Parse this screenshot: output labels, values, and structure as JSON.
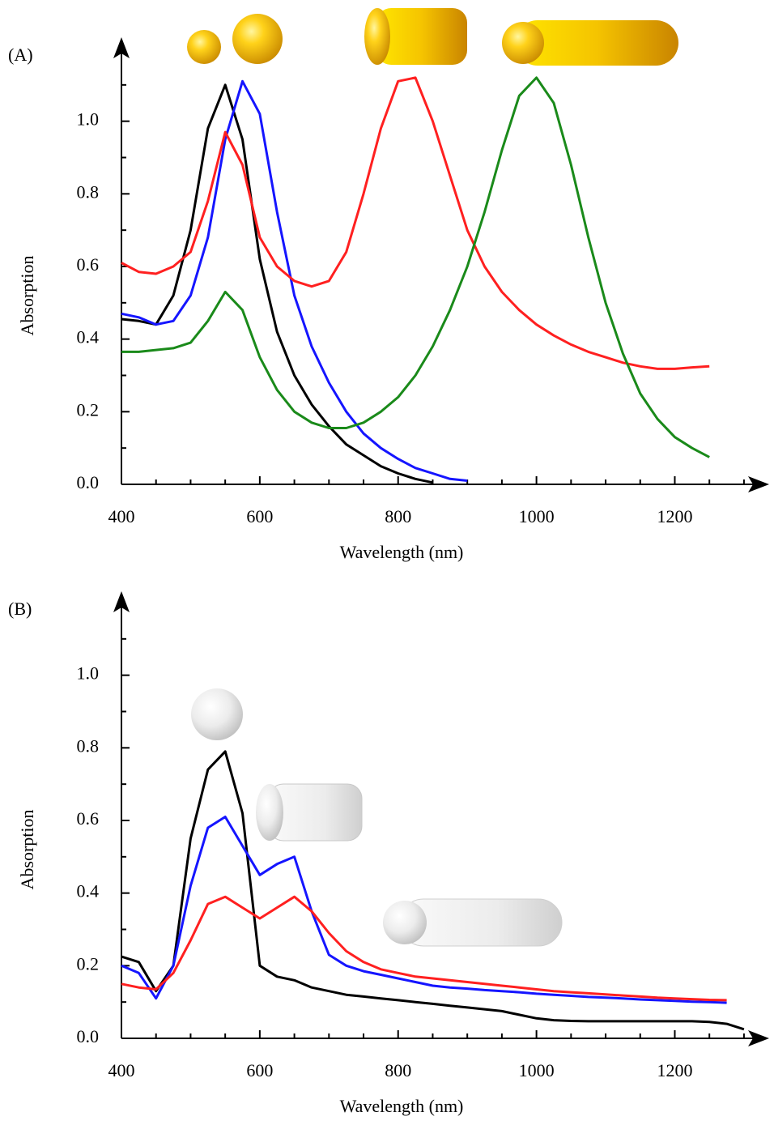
{
  "chart_data": [
    {
      "type": "line",
      "panel_label": "(A)",
      "xlabel": "Wavelength (nm)",
      "ylabel": "Absorption",
      "x": [
        400,
        425,
        450,
        475,
        500,
        525,
        550,
        575,
        600,
        625,
        650,
        675,
        700,
        725,
        750,
        775,
        800,
        825,
        850,
        875,
        900,
        925,
        950,
        975,
        1000,
        1025,
        1050,
        1075,
        1100,
        1125,
        1150,
        1175,
        1200,
        1225,
        1250,
        1275,
        1300
      ],
      "series": [
        {
          "color": "#000000",
          "values": [
            0.455,
            0.45,
            0.44,
            0.52,
            0.7,
            0.98,
            1.1,
            0.95,
            0.62,
            0.42,
            0.3,
            0.22,
            0.16,
            0.11,
            0.08,
            0.05,
            0.03,
            0.015,
            0.005,
            null,
            null,
            null,
            null,
            null,
            null,
            null,
            null,
            null,
            null,
            null,
            null,
            null,
            null,
            null,
            null,
            null,
            null
          ]
        },
        {
          "color": "#1515ff",
          "values": [
            0.47,
            0.46,
            0.44,
            0.45,
            0.52,
            0.68,
            0.95,
            1.11,
            1.02,
            0.75,
            0.52,
            0.38,
            0.28,
            0.2,
            0.14,
            0.1,
            0.07,
            0.045,
            0.03,
            0.015,
            0.01,
            null,
            null,
            null,
            null,
            null,
            null,
            null,
            null,
            null,
            null,
            null,
            null,
            null,
            null,
            null,
            null
          ]
        },
        {
          "color": "#ff2020",
          "values": [
            0.61,
            0.585,
            0.58,
            0.6,
            0.64,
            0.78,
            0.97,
            0.88,
            0.68,
            0.6,
            0.56,
            0.545,
            0.56,
            0.64,
            0.8,
            0.98,
            1.11,
            1.12,
            1.0,
            0.85,
            0.7,
            0.6,
            0.53,
            0.48,
            0.44,
            0.41,
            0.385,
            0.365,
            0.35,
            0.335,
            0.325,
            0.318,
            0.318,
            0.322,
            0.325,
            null,
            null
          ]
        },
        {
          "color": "#1a8a1a",
          "values": [
            0.365,
            0.365,
            0.37,
            0.375,
            0.39,
            0.45,
            0.53,
            0.48,
            0.35,
            0.26,
            0.2,
            0.17,
            0.155,
            0.155,
            0.17,
            0.2,
            0.24,
            0.3,
            0.38,
            0.48,
            0.6,
            0.75,
            0.92,
            1.07,
            1.12,
            1.05,
            0.88,
            0.68,
            0.5,
            0.36,
            0.25,
            0.18,
            0.13,
            0.1,
            0.075,
            null,
            null
          ]
        }
      ],
      "xlim": [
        400,
        1320
      ],
      "ylim": [
        0,
        1.2
      ],
      "xticks": [
        400,
        600,
        800,
        1000,
        1200
      ],
      "yticks": [
        {
          "value": 0,
          "label": "0.0"
        },
        0.2,
        0.4,
        0.6,
        0.8,
        {
          "value": 1,
          "label": "1.0"
        }
      ]
    },
    {
      "type": "line",
      "panel_label": "(B)",
      "xlabel": "Wavelength (nm)",
      "ylabel": "Absorption",
      "x": [
        400,
        425,
        450,
        475,
        500,
        525,
        550,
        575,
        600,
        625,
        650,
        675,
        700,
        725,
        750,
        775,
        800,
        825,
        850,
        875,
        900,
        925,
        950,
        975,
        1000,
        1025,
        1050,
        1075,
        1100,
        1125,
        1150,
        1175,
        1200,
        1225,
        1250,
        1275,
        1300
      ],
      "series": [
        {
          "color": "#000000",
          "values": [
            0.225,
            0.21,
            0.13,
            0.2,
            0.55,
            0.74,
            0.79,
            0.62,
            0.2,
            0.17,
            0.16,
            0.14,
            0.13,
            0.12,
            0.115,
            0.11,
            0.105,
            0.1,
            0.095,
            0.09,
            0.085,
            0.08,
            0.075,
            0.065,
            0.055,
            0.05,
            0.048,
            0.047,
            0.047,
            0.047,
            0.047,
            0.047,
            0.047,
            0.047,
            0.045,
            0.04,
            0.025
          ]
        },
        {
          "color": "#1515ff",
          "values": [
            0.2,
            0.18,
            0.11,
            0.2,
            0.42,
            0.58,
            0.61,
            0.53,
            0.45,
            0.48,
            0.5,
            0.35,
            0.23,
            0.2,
            0.185,
            0.175,
            0.165,
            0.155,
            0.145,
            0.14,
            0.137,
            0.133,
            0.13,
            0.127,
            0.123,
            0.12,
            0.117,
            0.114,
            0.112,
            0.11,
            0.107,
            0.105,
            0.103,
            0.101,
            0.1,
            0.098,
            null
          ]
        },
        {
          "color": "#ff2020",
          "values": [
            0.15,
            0.14,
            0.135,
            0.18,
            0.27,
            0.37,
            0.39,
            0.36,
            0.33,
            0.36,
            0.39,
            0.35,
            0.29,
            0.24,
            0.21,
            0.19,
            0.18,
            0.17,
            0.165,
            0.16,
            0.155,
            0.15,
            0.145,
            0.14,
            0.135,
            0.13,
            0.127,
            0.124,
            0.121,
            0.118,
            0.115,
            0.112,
            0.11,
            0.108,
            0.106,
            0.105,
            null
          ]
        }
      ],
      "xlim": [
        400,
        1320
      ],
      "ylim": [
        0,
        1.2
      ],
      "xticks": [
        400,
        600,
        800,
        1000,
        1200
      ],
      "yticks": [
        {
          "value": 0,
          "label": "0.0"
        },
        0.2,
        0.4,
        0.6,
        0.8,
        {
          "value": 1,
          "label": "1.0"
        }
      ]
    }
  ]
}
